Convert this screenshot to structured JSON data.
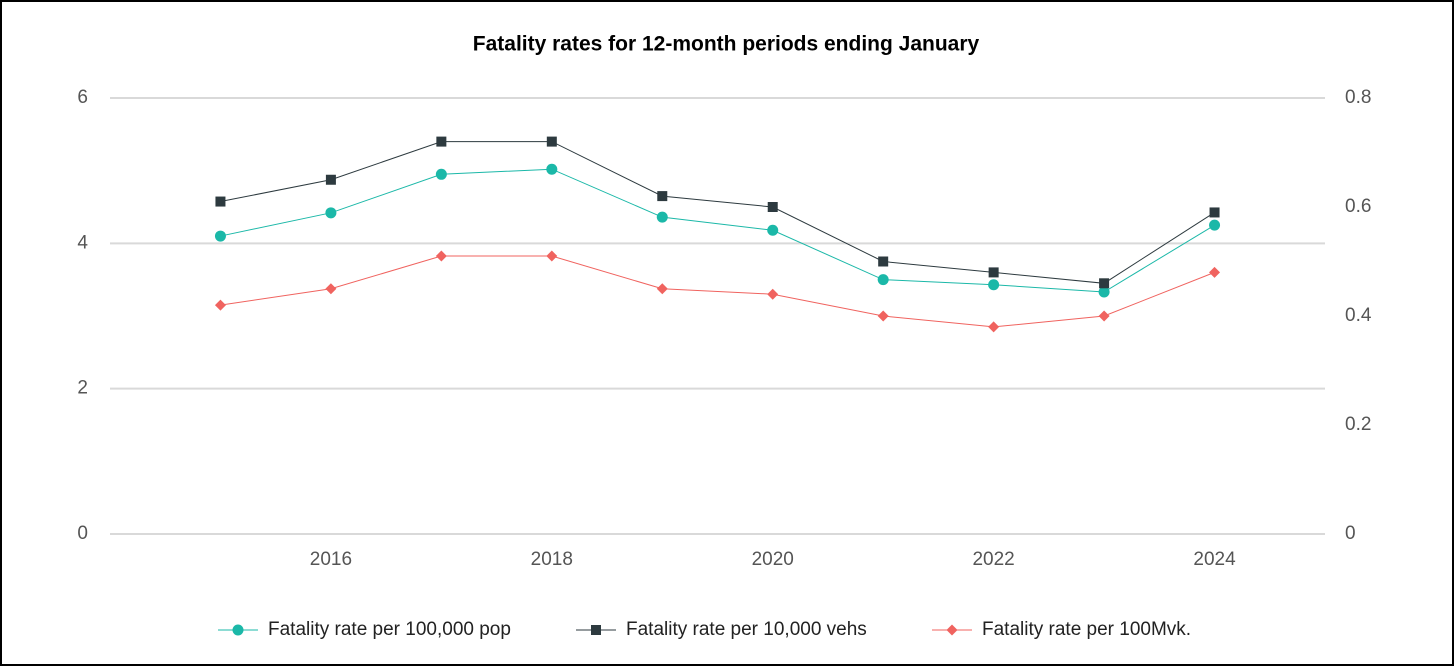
{
  "chart_data": {
    "type": "line",
    "title": "Fatality rates for 12-month periods ending January",
    "x": [
      2015,
      2016,
      2017,
      2018,
      2019,
      2020,
      2021,
      2022,
      2023,
      2024
    ],
    "xlim": [
      2014,
      2025
    ],
    "xticks": [
      2016,
      2018,
      2020,
      2022,
      2024
    ],
    "ylim": [
      0,
      6
    ],
    "yticks": [
      0,
      2,
      4,
      6
    ],
    "y2lim": [
      0,
      0.8
    ],
    "y2ticks": [
      0,
      0.2,
      0.4,
      0.6,
      0.8
    ],
    "grid": true,
    "legend": "bottom",
    "series": [
      {
        "name": "Fatality rate per 100,000 pop",
        "color": "#1bb8a8",
        "marker": "circle",
        "values": [
          4.1,
          4.42,
          4.95,
          5.02,
          4.36,
          4.18,
          3.5,
          3.43,
          3.33,
          4.25
        ]
      },
      {
        "name": "Fatality rate per 10,000 vehs",
        "color": "#2d3a3f",
        "marker": "square",
        "axis": "y2",
        "values": [
          0.61,
          0.65,
          0.72,
          0.72,
          0.62,
          0.6,
          0.5,
          0.48,
          0.46,
          0.59
        ]
      },
      {
        "name": "Fatality rate per 100Mvk.",
        "color": "#f0635f",
        "marker": "diamond",
        "axis": "y2",
        "values": [
          0.42,
          0.45,
          0.51,
          0.51,
          0.45,
          0.44,
          0.4,
          0.38,
          0.4,
          0.48
        ]
      }
    ]
  }
}
